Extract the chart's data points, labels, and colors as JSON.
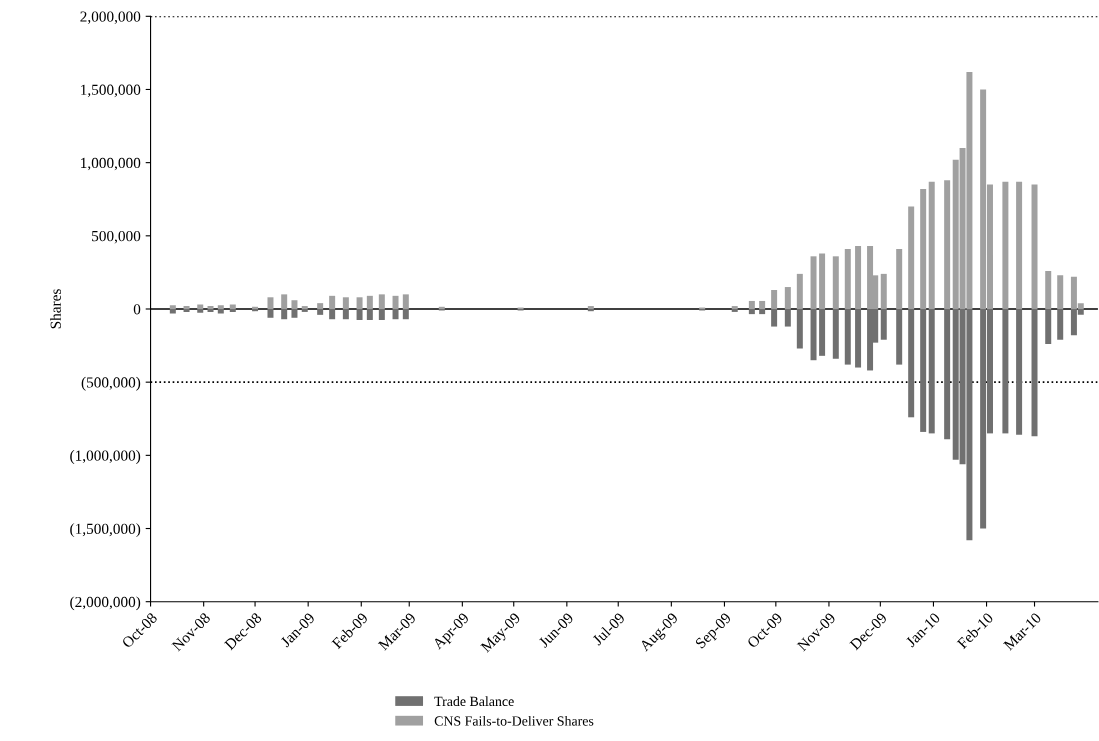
{
  "chart_data": {
    "type": "bar",
    "ylabel": "Shares",
    "x": [
      "2008-10-14",
      "2008-10-22",
      "2008-10-30",
      "2008-11-05",
      "2008-11-11",
      "2008-11-18",
      "2008-12-01",
      "2008-12-10",
      "2008-12-18",
      "2008-12-24",
      "2008-12-30",
      "2009-01-08",
      "2009-01-15",
      "2009-01-23",
      "2009-01-31",
      "2009-02-06",
      "2009-02-13",
      "2009-02-21",
      "2009-02-27",
      "2009-03-20",
      "2009-05-05",
      "2009-06-15",
      "2009-08-19",
      "2009-09-07",
      "2009-09-17",
      "2009-09-23",
      "2009-09-30",
      "2009-10-08",
      "2009-10-15",
      "2009-10-23",
      "2009-10-28",
      "2009-11-05",
      "2009-11-12",
      "2009-11-18",
      "2009-11-25",
      "2009-11-28",
      "2009-12-03",
      "2009-12-12",
      "2009-12-19",
      "2009-12-26",
      "2009-12-31",
      "2010-01-09",
      "2010-01-14",
      "2010-01-18",
      "2010-01-22",
      "2010-01-30",
      "2010-02-03",
      "2010-02-12",
      "2010-02-20",
      "2010-03-01",
      "2010-03-09",
      "2010-03-16",
      "2010-03-24",
      "2010-03-28"
    ],
    "series": [
      {
        "name": "Trade Balance",
        "color": "#707070",
        "values": [
          -30000,
          -20000,
          -25000,
          -20000,
          -30000,
          -20000,
          -15000,
          -60000,
          -70000,
          -60000,
          -20000,
          -40000,
          -70000,
          -70000,
          -75000,
          -75000,
          -75000,
          -70000,
          -70000,
          -10000,
          -10000,
          -15000,
          -10000,
          -20000,
          -35000,
          -35000,
          -120000,
          -120000,
          -270000,
          -350000,
          -320000,
          -340000,
          -380000,
          -400000,
          -420000,
          -230000,
          -210000,
          -380000,
          -740000,
          -840000,
          -850000,
          -890000,
          -1030000,
          -1060000,
          -1580000,
          -1500000,
          -850000,
          -850000,
          -860000,
          -870000,
          -240000,
          -210000,
          -180000,
          -40000
        ]
      },
      {
        "name": "CNS Fails-to-Deliver Shares",
        "color": "#a0a0a0",
        "values": [
          25000,
          20000,
          30000,
          20000,
          25000,
          30000,
          15000,
          80000,
          100000,
          60000,
          20000,
          40000,
          90000,
          80000,
          80000,
          90000,
          100000,
          90000,
          100000,
          15000,
          10000,
          20000,
          10000,
          20000,
          55000,
          55000,
          130000,
          150000,
          240000,
          360000,
          380000,
          360000,
          410000,
          430000,
          430000,
          230000,
          240000,
          410000,
          700000,
          820000,
          870000,
          880000,
          1020000,
          1100000,
          1620000,
          1500000,
          850000,
          870000,
          870000,
          850000,
          260000,
          230000,
          220000,
          40000
        ]
      }
    ],
    "xlim": [
      "2008-10-01",
      "2010-04-07"
    ],
    "xticks": [
      {
        "value": "2008-10-01",
        "label": "Oct-08"
      },
      {
        "value": "2008-11-01",
        "label": "Nov-08"
      },
      {
        "value": "2008-12-01",
        "label": "Dec-08"
      },
      {
        "value": "2009-01-01",
        "label": "Jan-09"
      },
      {
        "value": "2009-02-01",
        "label": "Feb-09"
      },
      {
        "value": "2009-03-01",
        "label": "Mar-09"
      },
      {
        "value": "2009-04-01",
        "label": "Apr-09"
      },
      {
        "value": "2009-05-01",
        "label": "May-09"
      },
      {
        "value": "2009-06-01",
        "label": "Jun-09"
      },
      {
        "value": "2009-07-01",
        "label": "Jul-09"
      },
      {
        "value": "2009-08-01",
        "label": "Aug-09"
      },
      {
        "value": "2009-09-01",
        "label": "Sep-09"
      },
      {
        "value": "2009-10-01",
        "label": "Oct-09"
      },
      {
        "value": "2009-11-01",
        "label": "Nov-09"
      },
      {
        "value": "2009-12-01",
        "label": "Dec-09"
      },
      {
        "value": "2010-01-01",
        "label": "Jan-10"
      },
      {
        "value": "2010-02-01",
        "label": "Feb-10"
      },
      {
        "value": "2010-03-01",
        "label": "Mar-10"
      }
    ],
    "ylim": [
      -2000000,
      2000000
    ],
    "yticks": [
      {
        "value": -2000000,
        "label": "(2,000,000)"
      },
      {
        "value": -1500000,
        "label": "(1,500,000)"
      },
      {
        "value": -1000000,
        "label": "(1,000,000)"
      },
      {
        "value": -500000,
        "label": "(500,000)"
      },
      0,
      {
        "value": 500000,
        "label": "500,000"
      },
      {
        "value": 1000000,
        "label": "1,000,000"
      },
      {
        "value": 1500000,
        "label": "1,500,000"
      },
      {
        "value": 2000000,
        "label": "2,000,000"
      }
    ],
    "ref_lines": [
      {
        "axis": "y",
        "value": 2000000,
        "color": "#000000",
        "line_style": "dotted"
      },
      {
        "axis": "y",
        "value": -500000,
        "color": "#000000",
        "line_style": "dotted"
      },
      {
        "axis": "y",
        "value": 0,
        "color": "#000000",
        "line_style": "solid"
      }
    ],
    "legend": "bottom",
    "stacked": true
  }
}
